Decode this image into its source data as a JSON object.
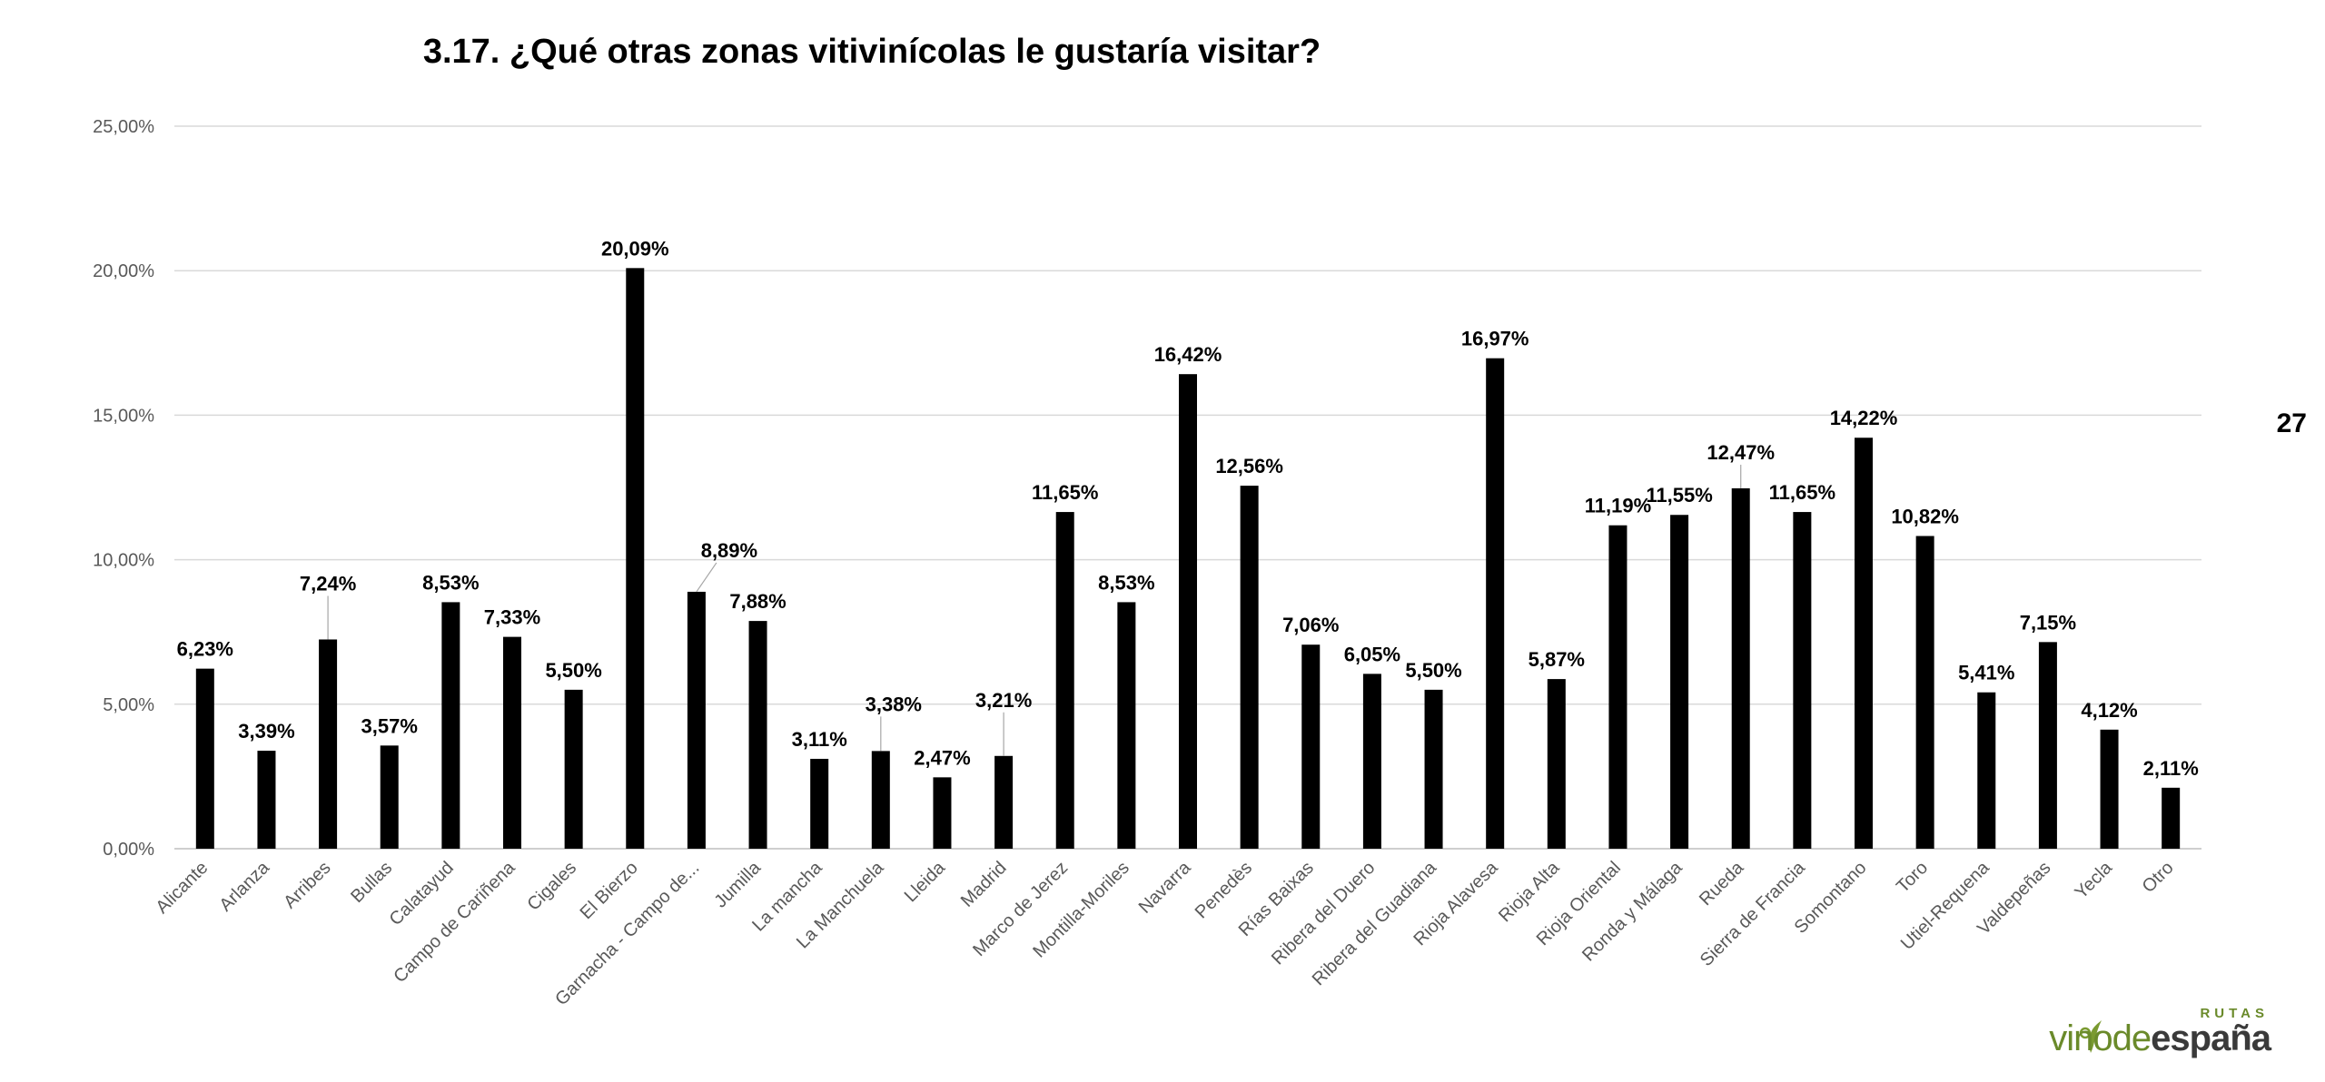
{
  "page": {
    "number": "27"
  },
  "logo": {
    "small": "RUTAS",
    "light": "vino",
    "mid": "de",
    "dark": "españa"
  },
  "chart_data": {
    "type": "bar",
    "title": "3.17. ¿Qué otras zonas vitivinícolas le gustaría visitar?",
    "xlabel": "",
    "ylabel": "",
    "ylim": [
      0,
      25
    ],
    "yticks": [
      0,
      5,
      10,
      15,
      20,
      25
    ],
    "ytick_labels": [
      "0,00%",
      "5,00%",
      "10,00%",
      "15,00%",
      "20,00%",
      "25,00%"
    ],
    "grid": true,
    "legend": "none",
    "bar_color": "#000000",
    "categories": [
      "Alicante",
      "Arlanza",
      "Arribes",
      "Bullas",
      "Calatayud",
      "Campo de Cariñena",
      "Cigales",
      "El Bierzo",
      "Garnacha - Campo de...",
      "Jumilla",
      "La mancha",
      "La Manchuela",
      "Lleida",
      "Madrid",
      "Marco de Jerez",
      "Montilla-Moriles",
      "Navarra",
      "Penedès",
      "Rías Baixas",
      "Ribera del Duero",
      "Ribera del Guadiana",
      "Rioja Alavesa",
      "Rioja Alta",
      "Rioja Oriental",
      "Ronda y Málaga",
      "Rueda",
      "Sierra de Francia",
      "Somontano",
      "Toro",
      "Utiel-Requena",
      "Valdepeñas",
      "Yecla",
      "Otro"
    ],
    "values": [
      6.23,
      3.39,
      7.24,
      3.57,
      8.53,
      7.33,
      5.5,
      20.09,
      8.89,
      7.88,
      3.11,
      3.38,
      2.47,
      3.21,
      11.65,
      8.53,
      16.42,
      12.56,
      7.06,
      6.05,
      5.5,
      16.97,
      5.87,
      11.19,
      11.55,
      12.47,
      11.65,
      14.22,
      10.82,
      5.41,
      7.15,
      4.12,
      2.11
    ],
    "data_labels": [
      "6,23%",
      "3,39%",
      "7,24%",
      "3,57%",
      "8,53%",
      "7,33%",
      "5,50%",
      "20,09%",
      "8,89%",
      "7,88%",
      "3,11%",
      "3,38%",
      "2,47%",
      "3,21%",
      "11,65%",
      "8,53%",
      "16,42%",
      "12,56%",
      "7,06%",
      "6,05%",
      "5,50%",
      "16,97%",
      "5,87%",
      "11,19%",
      "11,55%",
      "12,47%",
      "11,65%",
      "14,22%",
      "10,82%",
      "5,41%",
      "7,15%",
      "4,12%",
      "2,11%"
    ]
  }
}
